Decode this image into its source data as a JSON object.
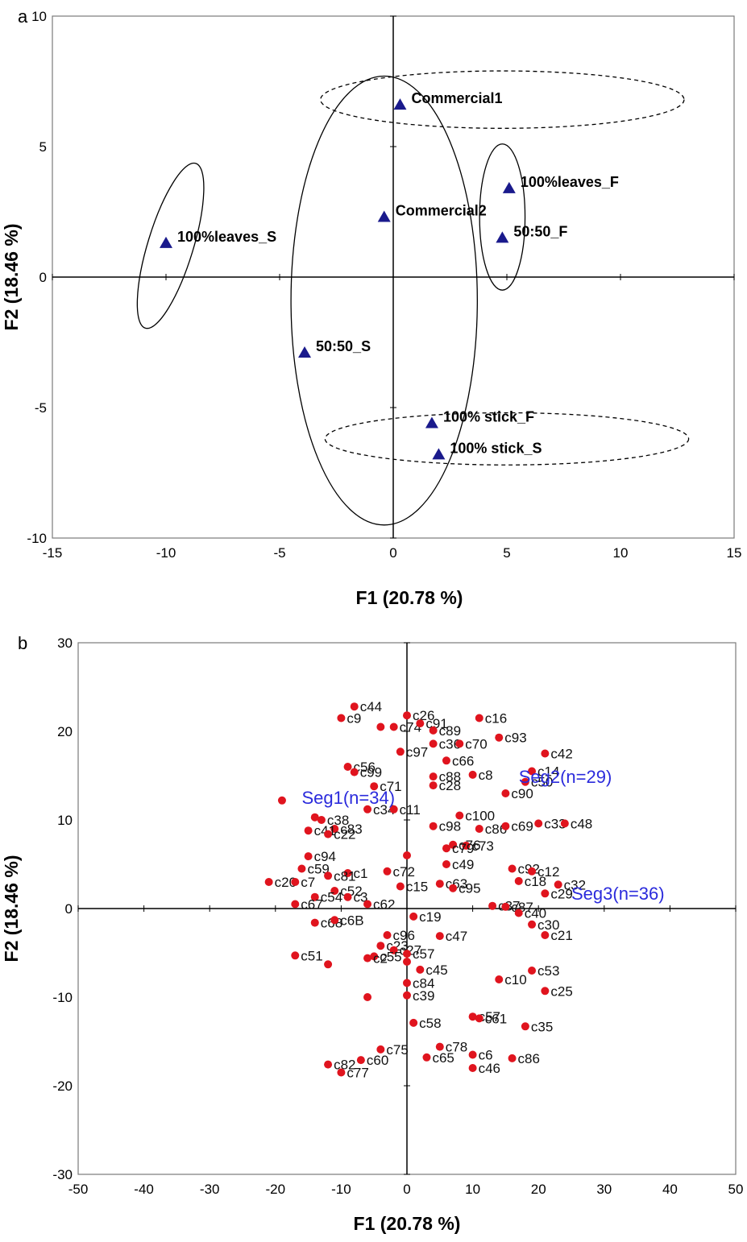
{
  "chart_data": [
    {
      "panel_label": "a",
      "type": "scatter",
      "xlabel": "F1 (20.78 %)",
      "ylabel": "F2 (18.46 %)",
      "xlim": [
        -15,
        15
      ],
      "ylim": [
        -10,
        10
      ],
      "xticks": [
        -15,
        -10,
        -5,
        0,
        5,
        10,
        15
      ],
      "yticks": [
        -10,
        -5,
        0,
        5,
        10
      ],
      "marker": "triangle",
      "marker_color": "#1a1a8c",
      "points": [
        {
          "label": "Commercial1",
          "x": 0.3,
          "y": 6.6
        },
        {
          "label": "Commercial2",
          "x": -0.4,
          "y": 2.3
        },
        {
          "label": "100%leaves_S",
          "x": -10.0,
          "y": 1.3
        },
        {
          "label": "100%leaves_F",
          "x": 5.1,
          "y": 3.4
        },
        {
          "label": "50:50_F",
          "x": 4.8,
          "y": 1.5
        },
        {
          "label": "50:50_S",
          "x": -3.9,
          "y": -2.9
        },
        {
          "label": "100% stick_F",
          "x": 1.7,
          "y": -5.6
        },
        {
          "label": "100% stick_S",
          "x": 2.0,
          "y": -6.8
        }
      ],
      "ellipses": [
        {
          "cx": 4.8,
          "cy": 6.8,
          "rx": 8.0,
          "ry": 1.1,
          "rot": 0,
          "style": "dashed"
        },
        {
          "cx": 5.0,
          "cy": -6.2,
          "rx": 8.0,
          "ry": 1.0,
          "rot": 0,
          "style": "dashed"
        },
        {
          "cx": -0.4,
          "cy": -0.9,
          "rx": 4.1,
          "ry": 8.6,
          "rot": 0,
          "style": "solid"
        },
        {
          "cx": 4.8,
          "cy": 2.3,
          "rx": 1.0,
          "ry": 2.8,
          "rot": 0,
          "style": "solid"
        },
        {
          "cx": -9.8,
          "cy": 1.2,
          "rx": 1.0,
          "ry": 3.3,
          "rot": 17,
          "style": "solid"
        }
      ]
    },
    {
      "panel_label": "b",
      "type": "scatter",
      "xlabel": "F1 (20.78 %)",
      "ylabel": "F2 (18.46 %)",
      "xlim": [
        -50,
        50
      ],
      "ylim": [
        -30,
        30
      ],
      "xticks": [
        -50,
        -40,
        -30,
        -20,
        -10,
        0,
        10,
        20,
        30,
        40,
        50
      ],
      "yticks": [
        -30,
        -20,
        -10,
        0,
        10,
        20,
        30
      ],
      "marker": "circle",
      "marker_color": "#e0141e",
      "segments": [
        {
          "label": "Seg1(n=34)",
          "x": -16,
          "y": 11.8
        },
        {
          "label": "Seg2(n=29)",
          "x": 17,
          "y": 14.2
        },
        {
          "label": "Seg3(n=36)",
          "x": 25,
          "y": 1.0
        }
      ],
      "points": [
        {
          "label": "c44",
          "x": -8,
          "y": 22.8
        },
        {
          "label": "c9",
          "x": -10,
          "y": 21.5
        },
        {
          "label": "",
          "x": -4,
          "y": 20.5
        },
        {
          "label": "c74",
          "x": -2,
          "y": 20.5
        },
        {
          "label": "c26",
          "x": 0,
          "y": 21.8
        },
        {
          "label": "c91",
          "x": 2,
          "y": 20.9
        },
        {
          "label": "c89",
          "x": 4,
          "y": 20.1
        },
        {
          "label": "c16",
          "x": 11,
          "y": 21.5
        },
        {
          "label": "c93",
          "x": 14,
          "y": 19.3
        },
        {
          "label": "c97",
          "x": -1,
          "y": 17.7
        },
        {
          "label": "c36",
          "x": 4,
          "y": 18.6
        },
        {
          "label": "c70",
          "x": 8,
          "y": 18.6
        },
        {
          "label": "c42",
          "x": 21,
          "y": 17.5
        },
        {
          "label": "c66",
          "x": 6,
          "y": 16.7
        },
        {
          "label": "c56",
          "x": -9,
          "y": 16.0
        },
        {
          "label": "c99",
          "x": -8,
          "y": 15.4
        },
        {
          "label": "c88",
          "x": 4,
          "y": 14.9
        },
        {
          "label": "c8",
          "x": 10,
          "y": 15.1
        },
        {
          "label": "c90",
          "x": 15,
          "y": 13.0
        },
        {
          "label": "c14",
          "x": 19,
          "y": 15.5
        },
        {
          "label": "c50",
          "x": 18,
          "y": 14.3
        },
        {
          "label": "c71",
          "x": -5,
          "y": 13.8
        },
        {
          "label": "c28",
          "x": 4,
          "y": 13.9
        },
        {
          "label": "",
          "x": -19,
          "y": 12.2
        },
        {
          "label": "c34",
          "x": -6,
          "y": 11.2
        },
        {
          "label": "c11",
          "x": -2,
          "y": 11.2
        },
        {
          "label": "c38",
          "x": -13,
          "y": 10.0
        },
        {
          "label": "c83",
          "x": -11,
          "y": 9.0
        },
        {
          "label": "c100",
          "x": 8,
          "y": 10.5
        },
        {
          "label": "c98",
          "x": 4,
          "y": 9.3
        },
        {
          "label": "c86",
          "x": 11,
          "y": 9.0
        },
        {
          "label": "c69",
          "x": 15,
          "y": 9.3
        },
        {
          "label": "c33",
          "x": 20,
          "y": 9.6
        },
        {
          "label": "c48",
          "x": 24,
          "y": 9.6
        },
        {
          "label": "c41",
          "x": -15,
          "y": 8.8
        },
        {
          "label": "c22",
          "x": -12,
          "y": 8.4
        },
        {
          "label": "",
          "x": -14,
          "y": 10.3
        },
        {
          "label": "c76",
          "x": 7,
          "y": 7.2
        },
        {
          "label": "c73",
          "x": 9,
          "y": 7.1
        },
        {
          "label": "c79",
          "x": 6,
          "y": 6.8
        },
        {
          "label": "",
          "x": 0,
          "y": 6.0
        },
        {
          "label": "c94",
          "x": -15,
          "y": 5.9
        },
        {
          "label": "c49",
          "x": 6,
          "y": 5.0
        },
        {
          "label": "c92",
          "x": 16,
          "y": 4.5
        },
        {
          "label": "c12",
          "x": 19,
          "y": 4.2
        },
        {
          "label": "c59",
          "x": -16,
          "y": 4.5
        },
        {
          "label": "c1",
          "x": -9,
          "y": 4.0
        },
        {
          "label": "c72",
          "x": -3,
          "y": 4.2
        },
        {
          "label": "c81",
          "x": -12,
          "y": 3.7
        },
        {
          "label": "c18",
          "x": 17,
          "y": 3.1
        },
        {
          "label": "c32",
          "x": 23,
          "y": 2.7
        },
        {
          "label": "c20",
          "x": -21,
          "y": 3.0
        },
        {
          "label": "c7",
          "x": -17,
          "y": 3.0
        },
        {
          "label": "c63",
          "x": 5,
          "y": 2.8
        },
        {
          "label": "c95",
          "x": 7,
          "y": 2.3
        },
        {
          "label": "c15",
          "x": -1,
          "y": 2.5
        },
        {
          "label": "c52",
          "x": -11,
          "y": 2.0
        },
        {
          "label": "c29",
          "x": 21,
          "y": 1.7
        },
        {
          "label": "c54",
          "x": -14,
          "y": 1.3
        },
        {
          "label": "c3",
          "x": -9,
          "y": 1.3
        },
        {
          "label": "c37",
          "x": 13,
          "y": 0.3
        },
        {
          "label": "c87",
          "x": 15,
          "y": 0.2
        },
        {
          "label": "c67",
          "x": -17,
          "y": 0.5
        },
        {
          "label": "c62",
          "x": -6,
          "y": 0.5
        },
        {
          "label": "c40",
          "x": 17,
          "y": -0.5
        },
        {
          "label": "c19",
          "x": 1,
          "y": -0.9
        },
        {
          "label": "c68",
          "x": -14,
          "y": -1.6
        },
        {
          "label": "c6B",
          "x": -11,
          "y": -1.3
        },
        {
          "label": "c30",
          "x": 19,
          "y": -1.8
        },
        {
          "label": "c21",
          "x": 21,
          "y": -3.0
        },
        {
          "label": "c96",
          "x": -3,
          "y": -3.0
        },
        {
          "label": "c47",
          "x": 5,
          "y": -3.1
        },
        {
          "label": "c23",
          "x": -4,
          "y": -4.2
        },
        {
          "label": "c27",
          "x": -2,
          "y": -4.7
        },
        {
          "label": "c57",
          "x": 0,
          "y": -5.1
        },
        {
          "label": "c55",
          "x": -5,
          "y": -5.4
        },
        {
          "label": "c2",
          "x": -6,
          "y": -5.6
        },
        {
          "label": "c51",
          "x": -17,
          "y": -5.3
        },
        {
          "label": "",
          "x": -12,
          "y": -6.3
        },
        {
          "label": "",
          "x": 0,
          "y": -6.0
        },
        {
          "label": "c45",
          "x": 2,
          "y": -6.9
        },
        {
          "label": "c53",
          "x": 19,
          "y": -7.0
        },
        {
          "label": "c84",
          "x": 0,
          "y": -8.4
        },
        {
          "label": "c10",
          "x": 14,
          "y": -8.0
        },
        {
          "label": "c25",
          "x": 21,
          "y": -9.3
        },
        {
          "label": "c39",
          "x": 0,
          "y": -9.8
        },
        {
          "label": "",
          "x": -6,
          "y": -10.0
        },
        {
          "label": "c58",
          "x": 1,
          "y": -12.9
        },
        {
          "label": "c57",
          "x": 10,
          "y": -12.2
        },
        {
          "label": "c61",
          "x": 11,
          "y": -12.4
        },
        {
          "label": "c35",
          "x": 18,
          "y": -13.3
        },
        {
          "label": "c75",
          "x": -4,
          "y": -15.9
        },
        {
          "label": "c78",
          "x": 5,
          "y": -15.6
        },
        {
          "label": "c60",
          "x": -7,
          "y": -17.1
        },
        {
          "label": "c65",
          "x": 3,
          "y": -16.8
        },
        {
          "label": "c6",
          "x": 10,
          "y": -16.5
        },
        {
          "label": "c86",
          "x": 16,
          "y": -16.9
        },
        {
          "label": "c82",
          "x": -12,
          "y": -17.6
        },
        {
          "label": "c46",
          "x": 10,
          "y": -18.0
        },
        {
          "label": "c77",
          "x": -10,
          "y": -18.5
        }
      ]
    }
  ]
}
